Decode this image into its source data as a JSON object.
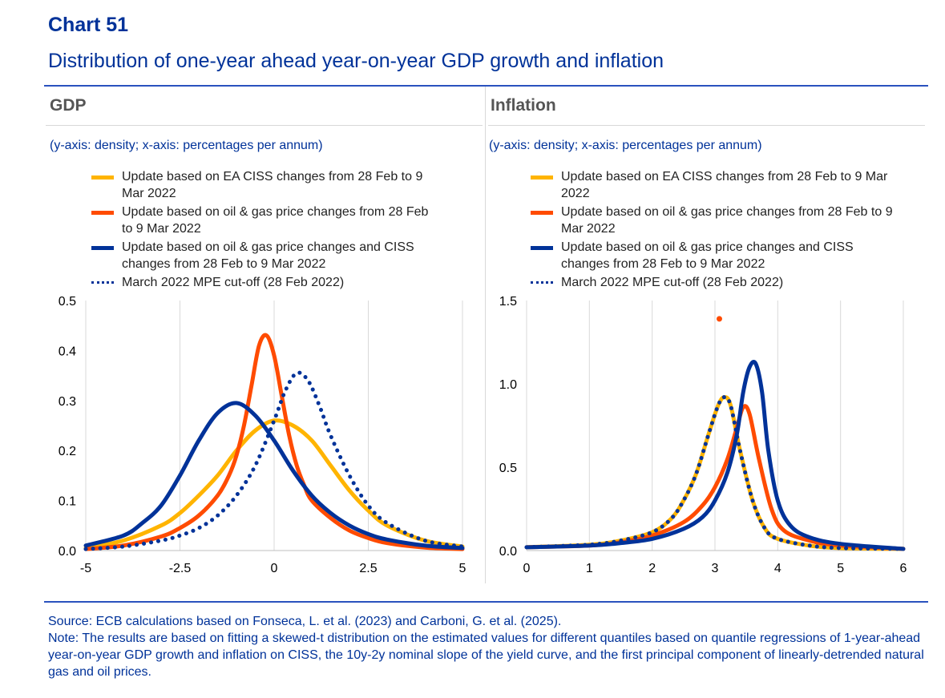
{
  "header": {
    "title": "Chart 51",
    "subtitle": "Distribution of one-year ahead year-on-year GDP growth and inflation"
  },
  "colors": {
    "yellow": "#FFB400",
    "orange": "#FF4B00",
    "navy": "#003299",
    "dotted": "#003299"
  },
  "chart_data": [
    {
      "type": "line",
      "title": "GDP",
      "axis_note": "(y-axis: density; x-axis: percentages per annum)",
      "xlim": [
        -5,
        5
      ],
      "ylim": [
        0,
        0.5
      ],
      "xticks": [
        "-5",
        "-2.5",
        "0",
        "2.5",
        "5"
      ],
      "yticks": [
        "0.0",
        "0.1",
        "0.2",
        "0.3",
        "0.4",
        "0.5"
      ],
      "legend": [
        "Update based on EA CISS changes from 28 Feb to 9 Mar 2022",
        "Update based on oil & gas price changes from 28 Feb to 9 Mar 2022",
        "Update based on oil & gas price changes and CISS changes from 28 Feb to 9 Mar 2022",
        "March 2022 MPE cut-off (28 Feb 2022)"
      ],
      "series": [
        {
          "name": "Update based on EA CISS changes from 28 Feb to 9 Mar 2022",
          "color": "#FFB400",
          "style": "solid",
          "x": [
            -5,
            -4,
            -3,
            -2.5,
            -2,
            -1.5,
            -1,
            -0.5,
            0,
            0.5,
            1,
            1.5,
            2,
            2.5,
            3,
            4,
            5
          ],
          "y": [
            0.005,
            0.02,
            0.05,
            0.075,
            0.11,
            0.15,
            0.2,
            0.24,
            0.26,
            0.25,
            0.22,
            0.17,
            0.12,
            0.08,
            0.05,
            0.02,
            0.008
          ]
        },
        {
          "name": "Update based on oil & gas price changes from 28 Feb to 9 Mar 2022",
          "color": "#FF4B00",
          "style": "solid",
          "x": [
            -5,
            -4,
            -3,
            -2.5,
            -2,
            -1.5,
            -1.2,
            -1,
            -0.8,
            -0.6,
            -0.4,
            -0.2,
            0,
            0.2,
            0.4,
            0.6,
            0.8,
            1,
            1.5,
            2,
            2.5,
            3,
            4,
            5
          ],
          "y": [
            0.003,
            0.01,
            0.028,
            0.045,
            0.07,
            0.11,
            0.15,
            0.19,
            0.25,
            0.33,
            0.41,
            0.43,
            0.39,
            0.31,
            0.23,
            0.17,
            0.13,
            0.1,
            0.065,
            0.04,
            0.025,
            0.015,
            0.006,
            0.003
          ]
        },
        {
          "name": "Update based on oil & gas price changes and CISS changes from 28 Feb to 9 Mar 2022",
          "color": "#003299",
          "style": "solid",
          "x": [
            -5,
            -4,
            -3.5,
            -3,
            -2.5,
            -2,
            -1.5,
            -1,
            -0.5,
            0,
            0.5,
            1,
            1.5,
            2,
            2.5,
            3,
            4,
            5
          ],
          "y": [
            0.01,
            0.03,
            0.055,
            0.09,
            0.15,
            0.22,
            0.275,
            0.295,
            0.27,
            0.22,
            0.16,
            0.11,
            0.075,
            0.05,
            0.033,
            0.022,
            0.01,
            0.005
          ]
        },
        {
          "name": "March 2022 MPE cut-off (28 Feb 2022)",
          "color": "#003299",
          "style": "dotted",
          "x": [
            -5,
            -4,
            -3,
            -2.5,
            -2,
            -1.5,
            -1,
            -0.5,
            0,
            0.3,
            0.6,
            0.9,
            1.2,
            1.5,
            2,
            2.5,
            3,
            4,
            5
          ],
          "y": [
            0.003,
            0.008,
            0.02,
            0.03,
            0.045,
            0.07,
            0.11,
            0.17,
            0.26,
            0.32,
            0.355,
            0.34,
            0.29,
            0.23,
            0.15,
            0.09,
            0.055,
            0.02,
            0.008
          ]
        }
      ]
    },
    {
      "type": "line",
      "title": "Inflation",
      "axis_note": "(y-axis: density; x-axis: percentages per annum)",
      "xlim": [
        0,
        6
      ],
      "ylim": [
        0,
        1.5
      ],
      "xticks": [
        "0",
        "1",
        "2",
        "3",
        "4",
        "5",
        "6"
      ],
      "yticks": [
        "0.0",
        "0.5",
        "1.0",
        "1.5"
      ],
      "legend": [
        "Update based on EA CISS changes from 28 Feb to 9 Mar 2022",
        "Update based on oil & gas price changes from 28 Feb to 9 Mar 2022",
        "Update based on oil & gas price changes and CISS changes from 28 Feb to 9 Mar 2022",
        "March 2022 MPE cut-off (28 Feb 2022)"
      ],
      "annotation_point": {
        "x": 3.07,
        "y": 1.39,
        "color": "#FF4B00"
      },
      "series": [
        {
          "name": "Update based on EA CISS changes from 28 Feb to 9 Mar 2022",
          "color": "#FFB400",
          "style": "solid",
          "x": [
            0,
            1,
            1.5,
            2,
            2.3,
            2.5,
            2.7,
            2.9,
            3.05,
            3.15,
            3.25,
            3.4,
            3.6,
            3.8,
            4,
            4.5,
            5,
            6
          ],
          "y": [
            0.02,
            0.035,
            0.06,
            0.11,
            0.19,
            0.3,
            0.46,
            0.7,
            0.87,
            0.92,
            0.87,
            0.6,
            0.3,
            0.13,
            0.07,
            0.03,
            0.015,
            0.01
          ]
        },
        {
          "name": "Update based on oil & gas price changes from 28 Feb to 9 Mar 2022",
          "color": "#FF4B00",
          "style": "solid",
          "x": [
            0,
            1,
            1.5,
            2,
            2.5,
            2.8,
            3,
            3.2,
            3.35,
            3.45,
            3.55,
            3.7,
            3.9,
            4.1,
            4.5,
            5,
            6
          ],
          "y": [
            0.02,
            0.03,
            0.05,
            0.09,
            0.17,
            0.27,
            0.38,
            0.55,
            0.74,
            0.86,
            0.82,
            0.55,
            0.25,
            0.12,
            0.06,
            0.03,
            0.01
          ]
        },
        {
          "name": "Update based on oil & gas price changes and CISS changes from 28 Feb to 9 Mar 2022",
          "color": "#003299",
          "style": "solid",
          "x": [
            0,
            1,
            1.5,
            2,
            2.5,
            2.8,
            3,
            3.2,
            3.35,
            3.45,
            3.55,
            3.65,
            3.75,
            3.85,
            4,
            4.2,
            4.5,
            5,
            6
          ],
          "y": [
            0.02,
            0.03,
            0.045,
            0.07,
            0.13,
            0.2,
            0.3,
            0.47,
            0.7,
            0.95,
            1.1,
            1.12,
            0.95,
            0.6,
            0.3,
            0.15,
            0.08,
            0.04,
            0.01
          ]
        },
        {
          "name": "March 2022 MPE cut-off (28 Feb 2022)",
          "color": "#003299",
          "style": "dotted",
          "x": [
            0,
            1,
            1.5,
            2,
            2.3,
            2.5,
            2.7,
            2.9,
            3.05,
            3.15,
            3.25,
            3.4,
            3.6,
            3.8,
            4,
            4.5,
            5,
            6
          ],
          "y": [
            0.02,
            0.035,
            0.06,
            0.11,
            0.19,
            0.3,
            0.46,
            0.7,
            0.87,
            0.92,
            0.87,
            0.6,
            0.3,
            0.13,
            0.07,
            0.03,
            0.015,
            0.01
          ]
        }
      ]
    }
  ],
  "footer": {
    "source": "Source: ECB calculations based on Fonseca, L. et al. (2023) and Carboni, G. et al. (2025).",
    "note": "Note: The results are based on fitting a skewed-t distribution on the estimated values for different quantiles based on quantile regressions of 1-year-ahead year-on-year GDP growth and inflation on CISS, the 10y-2y nominal slope of the yield curve, and the first principal component of linearly-detrended natural gas and oil prices."
  }
}
